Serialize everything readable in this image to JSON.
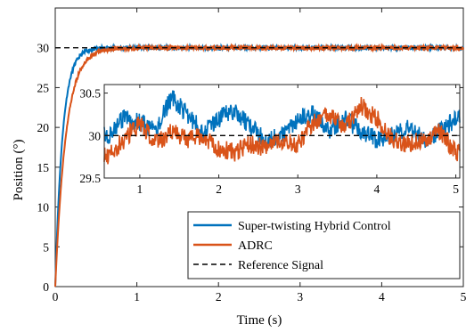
{
  "chart_data": [
    {
      "id": "main",
      "type": "line",
      "xlabel": "Time (s)",
      "ylabel": "Position (°)",
      "xlim": [
        0,
        5
      ],
      "ylim": [
        0,
        35
      ],
      "xticks": [
        0,
        1,
        2,
        3,
        4,
        5
      ],
      "yticks": [
        0,
        5,
        10,
        15,
        20,
        25,
        30
      ],
      "grid": false,
      "legend_position": "lower-right",
      "series": [
        {
          "name": "Super-twisting Hybrid Control",
          "color": "#0072BD",
          "style": "solid",
          "model": "first-order-rise",
          "final_value": 30,
          "time_constant": 0.09,
          "noise_amplitude": 0.25
        },
        {
          "name": "ADRC",
          "color": "#D95319",
          "style": "solid",
          "model": "first-order-rise",
          "final_value": 30,
          "time_constant": 0.13,
          "noise_amplitude": 0.25
        },
        {
          "name": "Reference Signal",
          "color": "#000000",
          "style": "dashed",
          "model": "constant",
          "final_value": 30
        }
      ]
    },
    {
      "id": "inset",
      "type": "line",
      "xlim": [
        0.55,
        5.05
      ],
      "ylim": [
        29.5,
        30.6
      ],
      "xticks": [
        1,
        2,
        3,
        4,
        5
      ],
      "yticks": [
        29.5,
        30,
        30.5
      ],
      "grid": false,
      "series": [
        {
          "name": "Super-twisting Hybrid Control",
          "color": "#0072BD",
          "x": [
            0.6,
            0.8,
            1.0,
            1.2,
            1.4,
            1.6,
            1.8,
            2.0,
            2.2,
            2.4,
            2.6,
            2.8,
            3.0,
            3.2,
            3.4,
            3.6,
            3.8,
            4.0,
            4.2,
            4.4,
            4.6,
            4.8,
            5.0
          ],
          "y": [
            30.0,
            30.2,
            30.15,
            30.05,
            30.45,
            30.25,
            30.05,
            30.2,
            30.3,
            30.1,
            29.95,
            30.0,
            30.2,
            30.25,
            30.05,
            30.2,
            30.05,
            29.95,
            30.0,
            30.1,
            29.95,
            30.05,
            30.2
          ]
        },
        {
          "name": "ADRC",
          "color": "#D95319",
          "x": [
            0.6,
            0.8,
            1.0,
            1.2,
            1.4,
            1.6,
            1.8,
            2.0,
            2.2,
            2.4,
            2.6,
            2.8,
            3.0,
            3.2,
            3.4,
            3.6,
            3.8,
            4.0,
            4.2,
            4.4,
            4.6,
            4.8,
            5.0
          ],
          "y": [
            29.75,
            29.95,
            30.15,
            29.9,
            30.05,
            29.95,
            30.0,
            29.85,
            29.8,
            29.9,
            29.85,
            29.95,
            29.9,
            30.15,
            30.25,
            30.1,
            30.35,
            30.2,
            29.95,
            29.9,
            29.95,
            30.05,
            29.8
          ]
        },
        {
          "name": "Reference Signal",
          "color": "#000000",
          "style": "dashed",
          "x": [
            0.55,
            5.05
          ],
          "y": [
            30,
            30
          ]
        }
      ]
    }
  ],
  "legend": {
    "entries": [
      {
        "label": "Super-twisting Hybrid Control",
        "color": "#0072BD",
        "style": "solid"
      },
      {
        "label": "ADRC",
        "color": "#D95319",
        "style": "solid"
      },
      {
        "label": "Reference Signal",
        "color": "#000000",
        "style": "dashed"
      }
    ]
  }
}
